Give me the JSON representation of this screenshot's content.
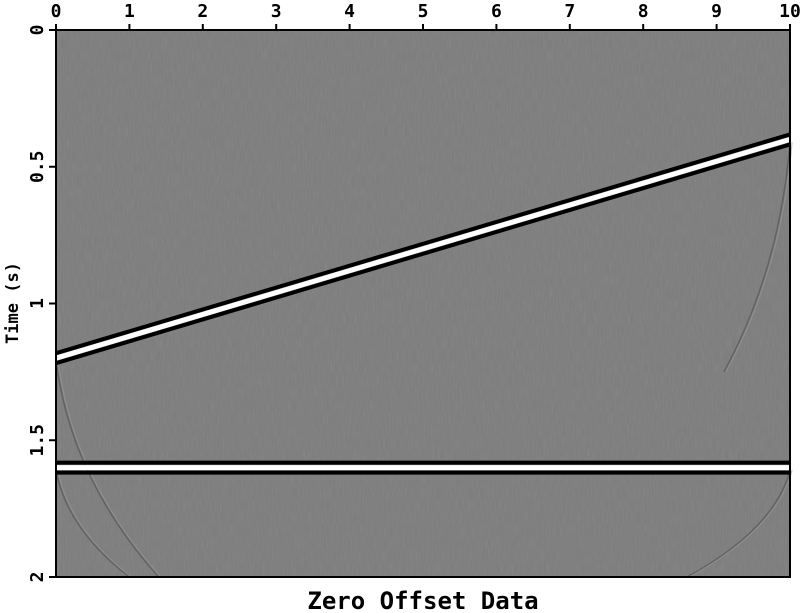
{
  "chart_data": {
    "type": "heatmap",
    "title": "Zero Offset Data",
    "xlabel": "",
    "ylabel": "Time (s)",
    "xlim": [
      0,
      10
    ],
    "ylim": [
      0,
      2
    ],
    "y_inverted": true,
    "x_axis_position": "top",
    "x_ticks": [
      "0",
      "1",
      "2",
      "3",
      "4",
      "5",
      "6",
      "7",
      "8",
      "9",
      "10"
    ],
    "y_ticks": [
      "0",
      "0.5",
      "1",
      "1.5",
      "2"
    ],
    "grid": false,
    "colormap": "grayscale",
    "colors": {
      "background": "#7c7c7c",
      "positive": "#ffffff",
      "negative": "#000000"
    },
    "events": [
      {
        "name": "dipping reflector",
        "x": [
          0,
          10
        ],
        "time": [
          1.2,
          0.4
        ]
      },
      {
        "name": "flat reflector",
        "x": [
          0,
          10
        ],
        "time": [
          1.6,
          1.6
        ]
      }
    ],
    "diffraction_tails": [
      {
        "x": [
          0,
          1.4
        ],
        "time": [
          1.21,
          2.0
        ]
      },
      {
        "x": [
          10,
          8.6
        ],
        "time": [
          1.61,
          2.0
        ]
      },
      {
        "x": [
          0,
          1.0
        ],
        "time": [
          1.61,
          2.0
        ]
      },
      {
        "x": [
          10,
          9.1
        ],
        "time": [
          0.41,
          1.25
        ]
      }
    ]
  }
}
